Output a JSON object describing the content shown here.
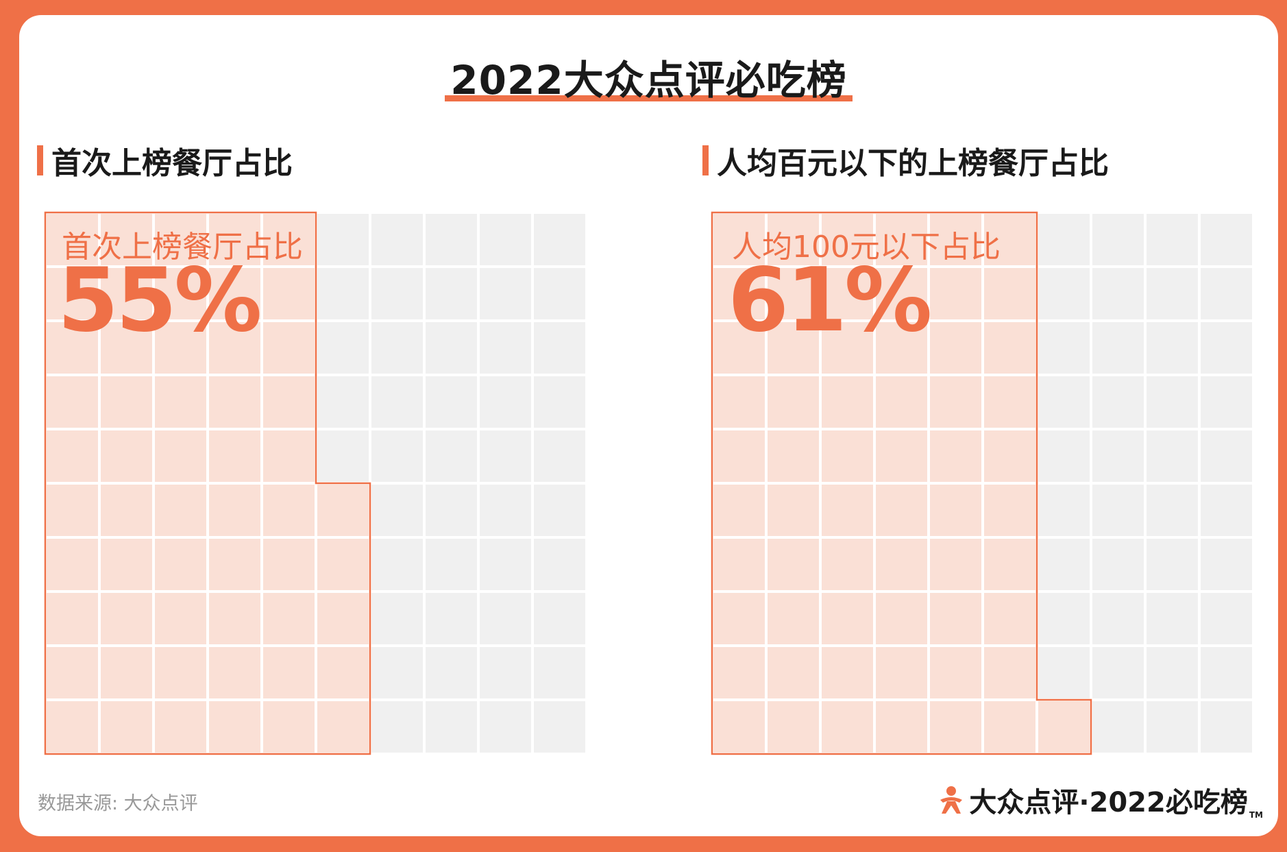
{
  "title": "2022大众点评必吃榜",
  "panels": [
    {
      "heading": "首次上榜餐厅占比",
      "label": "首次上榜餐厅占比",
      "value_text": "55%"
    },
    {
      "heading": "人均百元以下的上榜餐厅占比",
      "label": "人均100元以下占比",
      "value_text": "61%"
    }
  ],
  "source": "数据来源: 大众点评",
  "logo": {
    "icon": "dianping-person-icon",
    "text": "大众点评·2022必吃榜",
    "tm": "TM"
  },
  "colors": {
    "accent": "#ef7047",
    "filled": "#fae0d6",
    "empty": "#f0f0f0"
  },
  "chart_data": [
    {
      "type": "waffle",
      "title": "首次上榜餐厅占比",
      "grid": [
        10,
        10
      ],
      "values": [
        55
      ],
      "label": "55%"
    },
    {
      "type": "waffle",
      "title": "人均百元以下的上榜餐厅占比",
      "grid": [
        10,
        10
      ],
      "values": [
        61
      ],
      "label": "61%"
    }
  ]
}
